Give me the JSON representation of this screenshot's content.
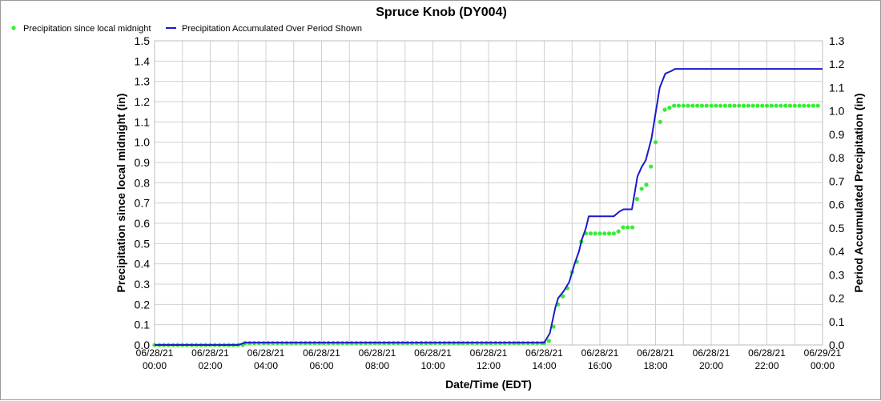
{
  "chart_data": {
    "type": "line",
    "title": "Spruce Knob (DY004)",
    "xlabel": "Date/Time (EDT)",
    "ylabel": "Precipitation since local midnight (in)",
    "y2label": "Period Accumulated Precipitation (in)",
    "xlim": [
      0,
      24
    ],
    "ylim": [
      0,
      1.5
    ],
    "y2lim": [
      0,
      1.3
    ],
    "grid": true,
    "legend_position": "top-left",
    "x_ticks": [
      {
        "date": "06/28/21",
        "time": "00:00",
        "hour": 0
      },
      {
        "date": "06/28/21",
        "time": "02:00",
        "hour": 2
      },
      {
        "date": "06/28/21",
        "time": "04:00",
        "hour": 4
      },
      {
        "date": "06/28/21",
        "time": "06:00",
        "hour": 6
      },
      {
        "date": "06/28/21",
        "time": "08:00",
        "hour": 8
      },
      {
        "date": "06/28/21",
        "time": "10:00",
        "hour": 10
      },
      {
        "date": "06/28/21",
        "time": "12:00",
        "hour": 12
      },
      {
        "date": "06/28/21",
        "time": "14:00",
        "hour": 14
      },
      {
        "date": "06/28/21",
        "time": "16:00",
        "hour": 16
      },
      {
        "date": "06/28/21",
        "time": "18:00",
        "hour": 18
      },
      {
        "date": "06/28/21",
        "time": "20:00",
        "hour": 20
      },
      {
        "date": "06/28/21",
        "time": "22:00",
        "hour": 22
      },
      {
        "date": "06/29/21",
        "time": "00:00",
        "hour": 24
      }
    ],
    "y_ticks": [
      "0.0",
      "0.1",
      "0.2",
      "0.3",
      "0.4",
      "0.5",
      "0.6",
      "0.7",
      "0.8",
      "0.9",
      "1.0",
      "1.1",
      "1.2",
      "1.3",
      "1.4",
      "1.5"
    ],
    "y2_ticks": [
      "0.0",
      "0.1",
      "0.2",
      "0.3",
      "0.4",
      "0.5",
      "0.6",
      "0.7",
      "0.8",
      "0.9",
      "1.0",
      "1.1",
      "1.2",
      "1.3"
    ],
    "series": [
      {
        "name": "Precipitation since local midnight",
        "axis": "left",
        "style": "points",
        "color": "#33ee33",
        "segments": [
          {
            "start_hour": 0,
            "end_hour": 3.25,
            "value": 0.0
          },
          {
            "start_hour": 3.25,
            "end_hour": 14.0,
            "value": 0.01
          }
        ],
        "points": [
          {
            "x": 14.0,
            "y": 0.01
          },
          {
            "x": 14.167,
            "y": 0.02
          },
          {
            "x": 14.333,
            "y": 0.09
          },
          {
            "x": 14.5,
            "y": 0.2
          },
          {
            "x": 14.667,
            "y": 0.24
          },
          {
            "x": 14.833,
            "y": 0.28
          },
          {
            "x": 15.0,
            "y": 0.36
          },
          {
            "x": 15.167,
            "y": 0.41
          },
          {
            "x": 15.333,
            "y": 0.51
          },
          {
            "x": 15.5,
            "y": 0.55
          },
          {
            "x": 15.667,
            "y": 0.55
          },
          {
            "x": 15.833,
            "y": 0.55
          },
          {
            "x": 16.0,
            "y": 0.55
          },
          {
            "x": 16.167,
            "y": 0.55
          },
          {
            "x": 16.333,
            "y": 0.55
          },
          {
            "x": 16.5,
            "y": 0.55
          },
          {
            "x": 16.667,
            "y": 0.56
          },
          {
            "x": 16.833,
            "y": 0.58
          },
          {
            "x": 17.0,
            "y": 0.58
          },
          {
            "x": 17.167,
            "y": 0.58
          },
          {
            "x": 17.333,
            "y": 0.72
          },
          {
            "x": 17.5,
            "y": 0.77
          },
          {
            "x": 17.667,
            "y": 0.79
          },
          {
            "x": 17.833,
            "y": 0.88
          },
          {
            "x": 18.0,
            "y": 1.0
          },
          {
            "x": 18.167,
            "y": 1.1
          },
          {
            "x": 18.333,
            "y": 1.16
          },
          {
            "x": 18.5,
            "y": 1.17
          },
          {
            "x": 18.667,
            "y": 1.18
          }
        ],
        "tail": {
          "start_hour": 18.667,
          "end_hour": 24.0,
          "value": 1.18
        }
      },
      {
        "name": "Precipitation Accumulated Over Period Shown",
        "axis": "right",
        "style": "line",
        "color": "#1a1acc",
        "points": [
          {
            "x": 0,
            "y": 0.0
          },
          {
            "x": 3.0,
            "y": 0.0
          },
          {
            "x": 3.25,
            "y": 0.01
          },
          {
            "x": 14.0,
            "y": 0.01
          },
          {
            "x": 14.2,
            "y": 0.05
          },
          {
            "x": 14.4,
            "y": 0.16
          },
          {
            "x": 14.5,
            "y": 0.2
          },
          {
            "x": 14.7,
            "y": 0.23
          },
          {
            "x": 14.9,
            "y": 0.27
          },
          {
            "x": 15.0,
            "y": 0.31
          },
          {
            "x": 15.1,
            "y": 0.35
          },
          {
            "x": 15.25,
            "y": 0.4
          },
          {
            "x": 15.35,
            "y": 0.45
          },
          {
            "x": 15.5,
            "y": 0.5
          },
          {
            "x": 15.6,
            "y": 0.55
          },
          {
            "x": 16.5,
            "y": 0.55
          },
          {
            "x": 16.7,
            "y": 0.57
          },
          {
            "x": 16.85,
            "y": 0.58
          },
          {
            "x": 17.15,
            "y": 0.58
          },
          {
            "x": 17.35,
            "y": 0.72
          },
          {
            "x": 17.5,
            "y": 0.76
          },
          {
            "x": 17.65,
            "y": 0.79
          },
          {
            "x": 17.85,
            "y": 0.88
          },
          {
            "x": 18.0,
            "y": 0.99
          },
          {
            "x": 18.15,
            "y": 1.1
          },
          {
            "x": 18.35,
            "y": 1.16
          },
          {
            "x": 18.55,
            "y": 1.17
          },
          {
            "x": 18.7,
            "y": 1.18
          },
          {
            "x": 24.0,
            "y": 1.18
          }
        ]
      }
    ]
  }
}
